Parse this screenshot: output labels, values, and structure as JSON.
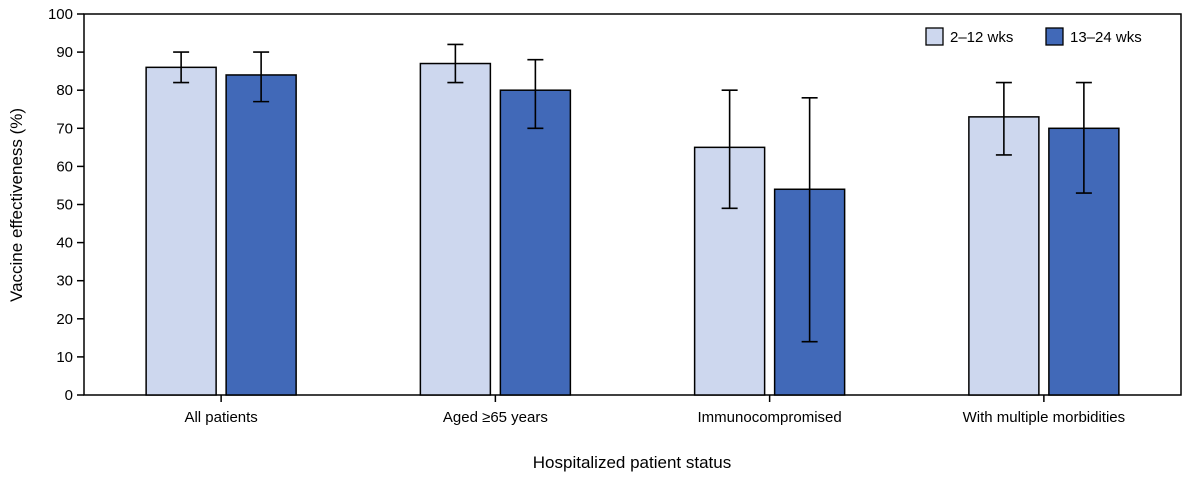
{
  "chart_data": {
    "type": "bar",
    "title": "",
    "xlabel": "Hospitalized patient status",
    "ylabel": "Vaccine effectiveness (%)",
    "ylim": [
      0,
      100
    ],
    "yticks": [
      0,
      10,
      20,
      30,
      40,
      50,
      60,
      70,
      80,
      90,
      100
    ],
    "categories": [
      "All patients",
      "Aged ≥65 years",
      "Immunocompromised",
      "With multiple morbidities"
    ],
    "series": [
      {
        "name": "2–12 wks",
        "color": "#cdd7ee",
        "values": [
          86,
          87,
          65,
          73
        ],
        "ci_low": [
          82,
          82,
          49,
          63
        ],
        "ci_high": [
          90,
          92,
          80,
          82
        ]
      },
      {
        "name": "13–24 wks",
        "color": "#4169b8",
        "values": [
          84,
          80,
          54,
          70
        ],
        "ci_low": [
          77,
          70,
          14,
          53
        ],
        "ci_high": [
          90,
          88,
          78,
          82
        ]
      }
    ],
    "legend_position": "top-right",
    "grid": false
  }
}
